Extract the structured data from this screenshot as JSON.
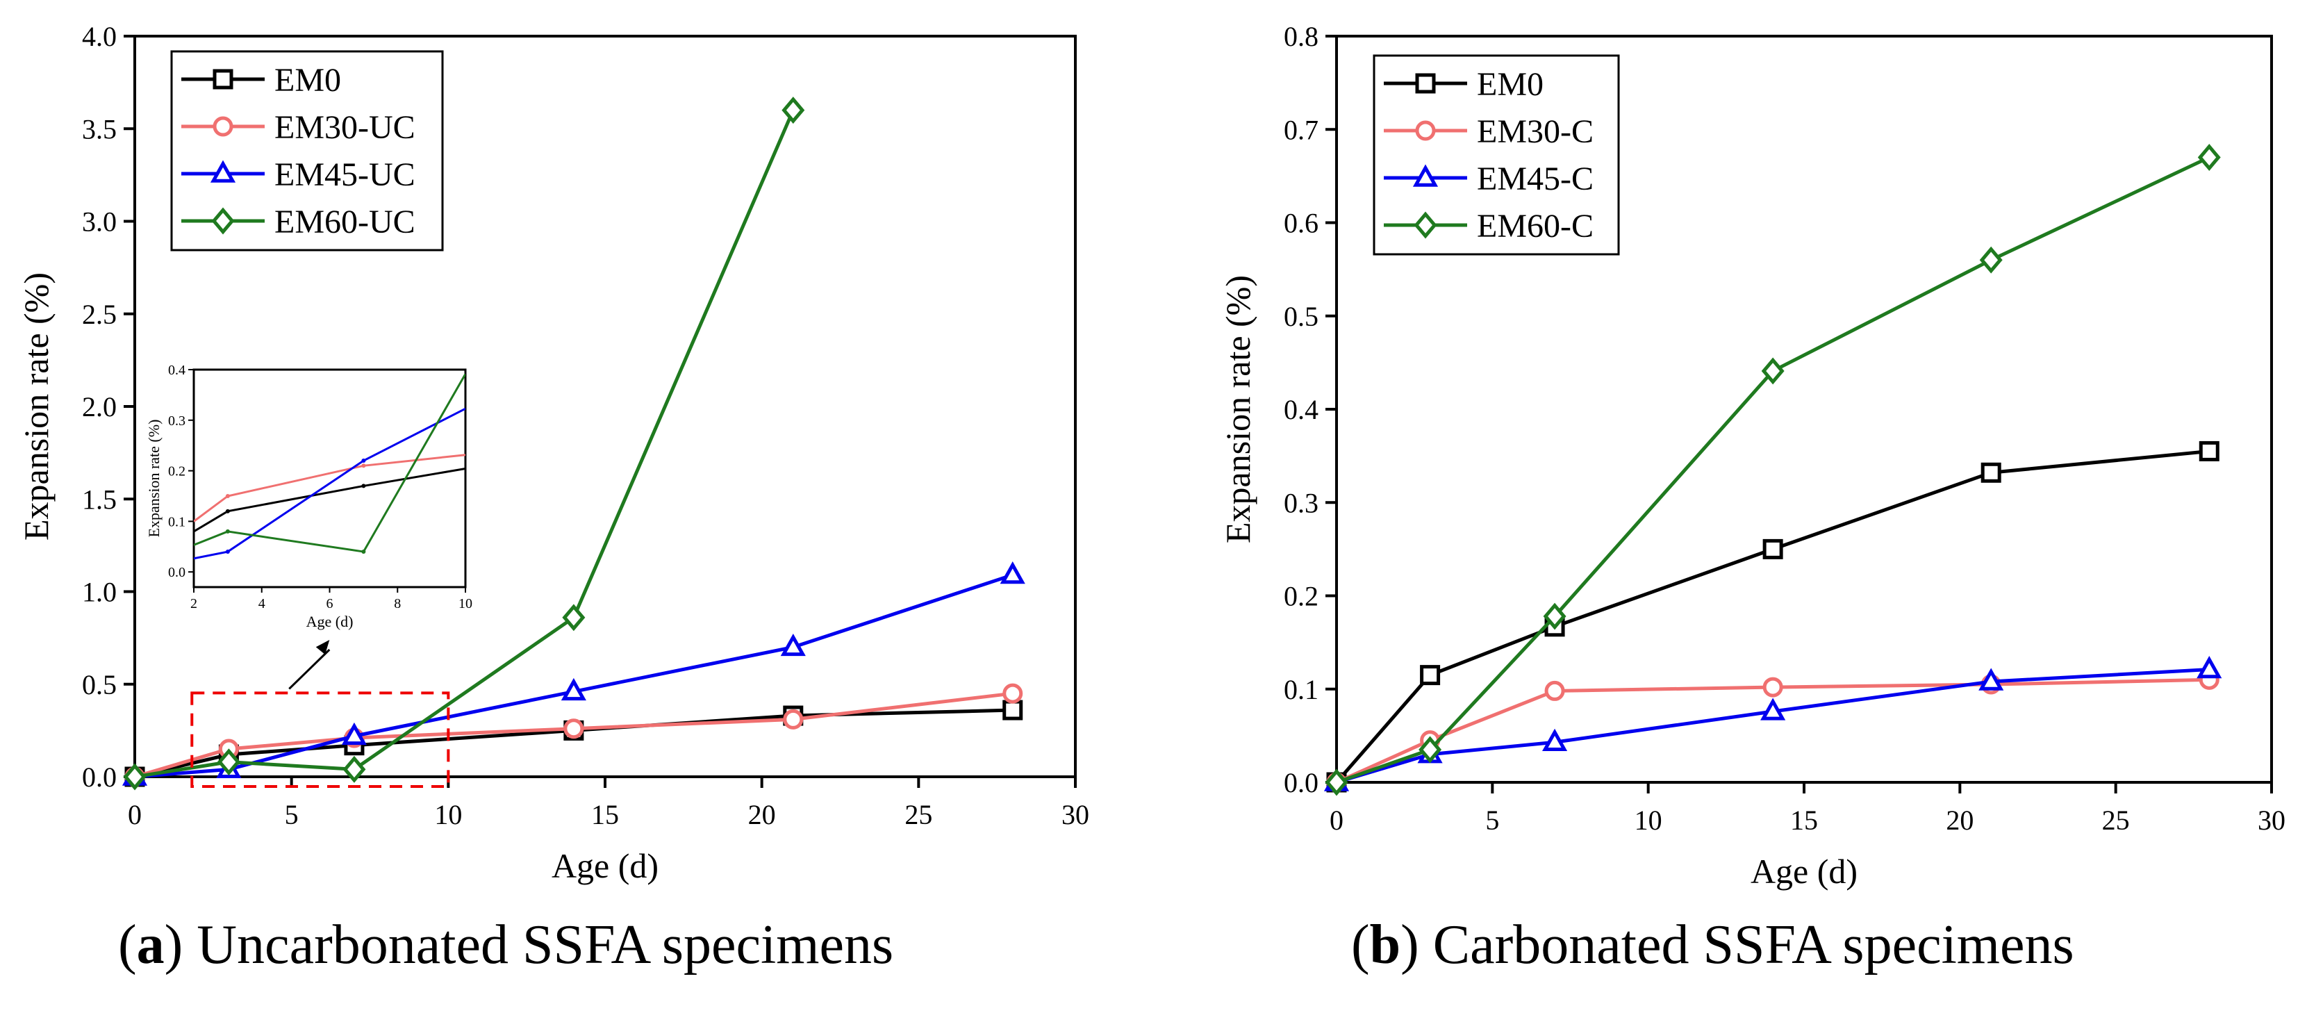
{
  "chart_data": [
    {
      "type": "line",
      "panel": "a",
      "xlabel": "Age (d)",
      "ylabel": "Expansion rate (%)",
      "xlim": [
        0,
        30
      ],
      "ylim": [
        0,
        4.0
      ],
      "xticks": [
        0,
        5,
        10,
        15,
        20,
        25,
        30
      ],
      "yticks": [
        0.0,
        0.5,
        1.0,
        1.5,
        2.0,
        2.5,
        3.0,
        3.5,
        4.0
      ],
      "ytick_labels": [
        "0.0",
        "0.5",
        "1.0",
        "1.5",
        "2.0",
        "2.5",
        "3.0",
        "3.5",
        "4.0"
      ],
      "xtick_labels": [
        "0",
        "5",
        "10",
        "15",
        "20",
        "25",
        "30"
      ],
      "legend_position": "top-left",
      "series": [
        {
          "name": "EM0",
          "color": "#000000",
          "marker": "square",
          "x": [
            0,
            3,
            7,
            14,
            21,
            28
          ],
          "values": [
            0.0,
            0.12,
            0.17,
            0.25,
            0.33,
            0.36
          ]
        },
        {
          "name": "EM30-UC",
          "color": "#f07070",
          "marker": "circle",
          "x": [
            0,
            3,
            7,
            14,
            21,
            28
          ],
          "values": [
            0.0,
            0.15,
            0.21,
            0.26,
            0.31,
            0.45
          ]
        },
        {
          "name": "EM45-UC",
          "color": "#0000ee",
          "marker": "triangle",
          "x": [
            0,
            3,
            7,
            14,
            21,
            28
          ],
          "values": [
            0.0,
            0.04,
            0.22,
            0.46,
            0.7,
            1.09
          ]
        },
        {
          "name": "EM60-UC",
          "color": "#1f7a1f",
          "marker": "diamond",
          "x": [
            0,
            3,
            7,
            14,
            21
          ],
          "values": [
            0.0,
            0.08,
            0.04,
            0.86,
            3.6
          ]
        }
      ],
      "inset": {
        "xlabel": "Age (d)",
        "ylabel": "Expansion rate (%)",
        "xlim": [
          2,
          10
        ],
        "ylim": [
          -0.03,
          0.4
        ],
        "xticks": [
          2,
          4,
          6,
          8,
          10
        ],
        "xtick_labels": [
          "2",
          "4",
          "6",
          "8",
          "10"
        ],
        "yticks": [
          0.0,
          0.1,
          0.2,
          0.3,
          0.4
        ],
        "ytick_labels": [
          "0.0",
          "0.1",
          "0.2",
          "0.3",
          "0.4"
        ],
        "zoom_region": {
          "x": [
            2,
            10
          ],
          "y": [
            0,
            0.4
          ]
        }
      }
    },
    {
      "type": "line",
      "panel": "b",
      "xlabel": "Age (d)",
      "ylabel": "Expansion rate (%)",
      "xlim": [
        0,
        30
      ],
      "ylim": [
        0,
        0.8
      ],
      "xticks": [
        0,
        5,
        10,
        15,
        20,
        25,
        30
      ],
      "yticks": [
        0.0,
        0.1,
        0.2,
        0.3,
        0.4,
        0.5,
        0.6,
        0.7,
        0.8
      ],
      "ytick_labels": [
        "0.0",
        "0.1",
        "0.2",
        "0.3",
        "0.4",
        "0.5",
        "0.6",
        "0.7",
        "0.8"
      ],
      "xtick_labels": [
        "0",
        "5",
        "10",
        "15",
        "20",
        "25",
        "30"
      ],
      "legend_position": "top-left",
      "series": [
        {
          "name": "EM0",
          "color": "#000000",
          "marker": "square",
          "x": [
            0,
            3,
            7,
            14,
            21,
            28
          ],
          "values": [
            0.0,
            0.115,
            0.167,
            0.25,
            0.332,
            0.355
          ]
        },
        {
          "name": "EM30-C",
          "color": "#f07070",
          "marker": "circle",
          "x": [
            0,
            3,
            7,
            14,
            21,
            28
          ],
          "values": [
            0.0,
            0.045,
            0.098,
            0.102,
            0.105,
            0.11
          ]
        },
        {
          "name": "EM45-C",
          "color": "#0000ee",
          "marker": "triangle",
          "x": [
            0,
            3,
            7,
            14,
            21,
            28
          ],
          "values": [
            0.0,
            0.03,
            0.043,
            0.076,
            0.108,
            0.121
          ]
        },
        {
          "name": "EM60-C",
          "color": "#1f7a1f",
          "marker": "diamond",
          "x": [
            0,
            3,
            7,
            14,
            21,
            28
          ],
          "values": [
            0.0,
            0.035,
            0.178,
            0.441,
            0.56,
            0.67
          ]
        }
      ]
    }
  ],
  "captions": {
    "a": {
      "letter": "a",
      "text": " Uncarbonated SSFA specimens"
    },
    "b": {
      "letter": "b",
      "text": " Carbonated SSFA specimens"
    }
  }
}
